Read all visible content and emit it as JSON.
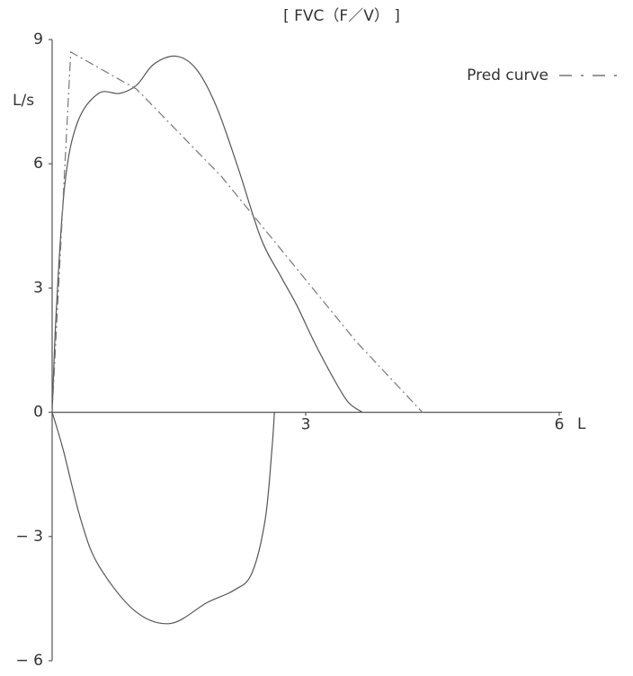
{
  "chart_data": {
    "type": "line",
    "title": "[ FVC（F／V） ]",
    "ylabel": "L/s",
    "xlabel": "L",
    "xlim": [
      0,
      6
    ],
    "ylim": [
      -6,
      9
    ],
    "xticks": [
      3,
      6
    ],
    "yticks": [
      {
        "value": -6,
        "label": "− 6"
      },
      {
        "value": -3,
        "label": "− 3"
      },
      0,
      3,
      6,
      9
    ],
    "legend": "top-right",
    "series": [
      {
        "color": "#555555",
        "dash": false,
        "x": [
          0,
          0.05,
          0.15,
          0.3,
          0.55,
          0.8,
          1.0,
          1.2,
          1.46,
          1.7,
          1.94,
          2.2,
          2.47,
          2.7,
          2.89,
          3.1,
          3.32,
          3.5,
          3.67
        ],
        "values": [
          0,
          2.5,
          5.5,
          7.0,
          7.7,
          7.7,
          7.9,
          8.4,
          8.6,
          8.3,
          7.4,
          5.9,
          4.2,
          3.3,
          2.6,
          1.7,
          0.85,
          0.25,
          0
        ]
      },
      {
        "color": "#555555",
        "dash": false,
        "x": [
          0,
          0.13,
          0.34,
          0.55,
          0.98,
          1.4,
          1.83,
          2.15,
          2.36,
          2.52,
          2.6,
          2.63
        ],
        "values": [
          0,
          -0.9,
          -2.6,
          -3.7,
          -4.8,
          -5.1,
          -4.6,
          -4.3,
          -3.9,
          -2.6,
          -0.9,
          0
        ]
      },
      {
        "name": "Pred curve",
        "color": "#777777",
        "dash": true,
        "x": [
          0,
          0.22,
          1.0,
          2.0,
          3.0,
          3.6,
          4.38
        ],
        "values": [
          0,
          8.7,
          7.8,
          5.7,
          3.2,
          1.7,
          0
        ]
      }
    ]
  }
}
